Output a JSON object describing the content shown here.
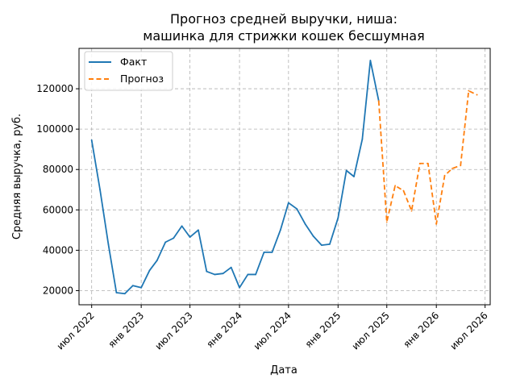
{
  "chart_data": {
    "type": "line",
    "title": [
      "Прогноз средней выручки, ниша:",
      "машинка для стрижки кошек бесшумная"
    ],
    "xlabel": "Дата",
    "ylabel": "Средняя выручка, руб.",
    "xlim": [
      "2022-05-15",
      "2026-07-20"
    ],
    "ylim": [
      13000,
      140000
    ],
    "x_ticks": [
      {
        "date": "2022-07-01",
        "label": "июл 2022"
      },
      {
        "date": "2023-01-01",
        "label": "янв 2023"
      },
      {
        "date": "2023-07-01",
        "label": "июл 2023"
      },
      {
        "date": "2024-01-01",
        "label": "янв 2024"
      },
      {
        "date": "2024-07-01",
        "label": "июл 2024"
      },
      {
        "date": "2025-01-01",
        "label": "янв 2025"
      },
      {
        "date": "2025-07-01",
        "label": "июл 2025"
      },
      {
        "date": "2026-01-01",
        "label": "янв 2026"
      },
      {
        "date": "2026-07-01",
        "label": "июл 2026"
      }
    ],
    "y_ticks": [
      20000,
      40000,
      60000,
      80000,
      100000,
      120000
    ],
    "grid": true,
    "legend": "top-left",
    "series": [
      {
        "name": "Факт",
        "color": "#1f77b4",
        "style": "solid",
        "points": [
          [
            "2022-07-01",
            94500
          ],
          [
            "2022-08-01",
            70000
          ],
          [
            "2022-09-01",
            43000
          ],
          [
            "2022-10-01",
            19000
          ],
          [
            "2022-11-01",
            18500
          ],
          [
            "2022-12-01",
            22500
          ],
          [
            "2023-01-01",
            21500
          ],
          [
            "2023-02-01",
            30000
          ],
          [
            "2023-03-01",
            35000
          ],
          [
            "2023-04-01",
            44000
          ],
          [
            "2023-05-01",
            46000
          ],
          [
            "2023-06-01",
            52000
          ],
          [
            "2023-07-01",
            46500
          ],
          [
            "2023-08-01",
            50000
          ],
          [
            "2023-09-01",
            29500
          ],
          [
            "2023-10-01",
            28000
          ],
          [
            "2023-11-01",
            28500
          ],
          [
            "2023-12-01",
            31500
          ],
          [
            "2024-01-01",
            21500
          ],
          [
            "2024-02-01",
            28000
          ],
          [
            "2024-03-01",
            28000
          ],
          [
            "2024-04-01",
            39000
          ],
          [
            "2024-05-01",
            39000
          ],
          [
            "2024-06-01",
            50000
          ],
          [
            "2024-07-01",
            63500
          ],
          [
            "2024-08-01",
            60500
          ],
          [
            "2024-09-01",
            53000
          ],
          [
            "2024-10-01",
            47000
          ],
          [
            "2024-11-01",
            42500
          ],
          [
            "2024-12-01",
            43000
          ],
          [
            "2025-01-01",
            56000
          ],
          [
            "2025-02-01",
            79500
          ],
          [
            "2025-03-01",
            76500
          ],
          [
            "2025-04-01",
            95000
          ],
          [
            "2025-05-01",
            134000
          ],
          [
            "2025-06-01",
            114000
          ]
        ]
      },
      {
        "name": "Прогноз",
        "color": "#ff7f0e",
        "style": "dashed",
        "points": [
          [
            "2025-06-01",
            114000
          ],
          [
            "2025-07-01",
            54000
          ],
          [
            "2025-08-01",
            72000
          ],
          [
            "2025-09-01",
            69500
          ],
          [
            "2025-10-01",
            59500
          ],
          [
            "2025-11-01",
            83000
          ],
          [
            "2025-12-01",
            83000
          ],
          [
            "2026-01-01",
            53000
          ],
          [
            "2026-02-01",
            77000
          ],
          [
            "2026-03-01",
            80500
          ],
          [
            "2026-04-01",
            82000
          ],
          [
            "2026-05-01",
            119000
          ],
          [
            "2026-06-01",
            117000
          ]
        ]
      }
    ]
  }
}
